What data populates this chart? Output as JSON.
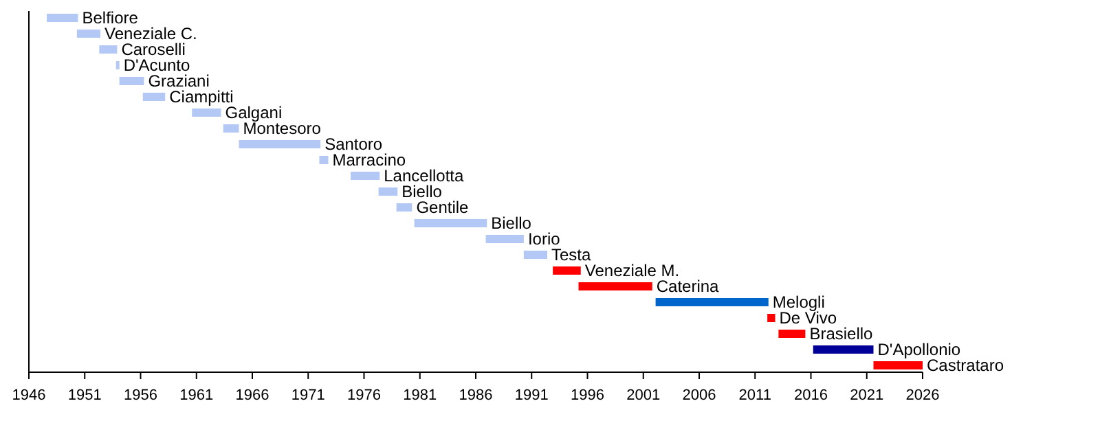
{
  "chart_data": {
    "type": "bar",
    "orientation": "horizontal",
    "categories": [
      "Belfiore",
      "Veneziale C.",
      "Caroselli",
      "D'Acunto",
      "Graziani",
      "Ciampitti",
      "Galgani",
      "Montesoro",
      "Santoro",
      "Marracino",
      "Lancellotta",
      "Biello",
      "Gentile",
      "Biello",
      "Iorio",
      "Testa",
      "Veneziale M.",
      "Caterina",
      "Melogli",
      "De Vivo",
      "Brasiello",
      "D'Apollonio",
      "Castrataro"
    ],
    "base": [
      1947.6,
      1950.3,
      1952.3,
      1953.8,
      1954.1,
      1956.2,
      1960.6,
      1963.4,
      1964.8,
      1972.0,
      1974.8,
      1977.3,
      1978.9,
      1980.5,
      1986.9,
      1990.3,
      1992.9,
      1995.2,
      2002.1,
      2012.1,
      2013.1,
      2016.2,
      2021.6
    ],
    "values": [
      2.8,
      2.1,
      1.6,
      0.3,
      2.2,
      2.0,
      2.6,
      1.4,
      7.3,
      0.8,
      2.6,
      1.7,
      1.4,
      6.5,
      3.4,
      2.1,
      2.5,
      6.6,
      10.1,
      0.7,
      2.4,
      5.4,
      4.4
    ],
    "colors": [
      "#b3c8f5",
      "#b3c8f5",
      "#b3c8f5",
      "#b3c8f5",
      "#b3c8f5",
      "#b3c8f5",
      "#b3c8f5",
      "#b3c8f5",
      "#b3c8f5",
      "#b3c8f5",
      "#b3c8f5",
      "#b3c8f5",
      "#b3c8f5",
      "#b3c8f5",
      "#b3c8f5",
      "#b3c8f5",
      "#ff0000",
      "#ff0000",
      "#0066cc",
      "#ff0000",
      "#ff0000",
      "#000099",
      "#ff0000"
    ],
    "xlim": [
      1946,
      2026
    ],
    "xticks": [
      1946,
      1951,
      1956,
      1961,
      1966,
      1971,
      1976,
      1981,
      1986,
      1991,
      1996,
      2001,
      2006,
      2011,
      2016,
      2021,
      2026
    ],
    "tick_labels": "x"
  }
}
